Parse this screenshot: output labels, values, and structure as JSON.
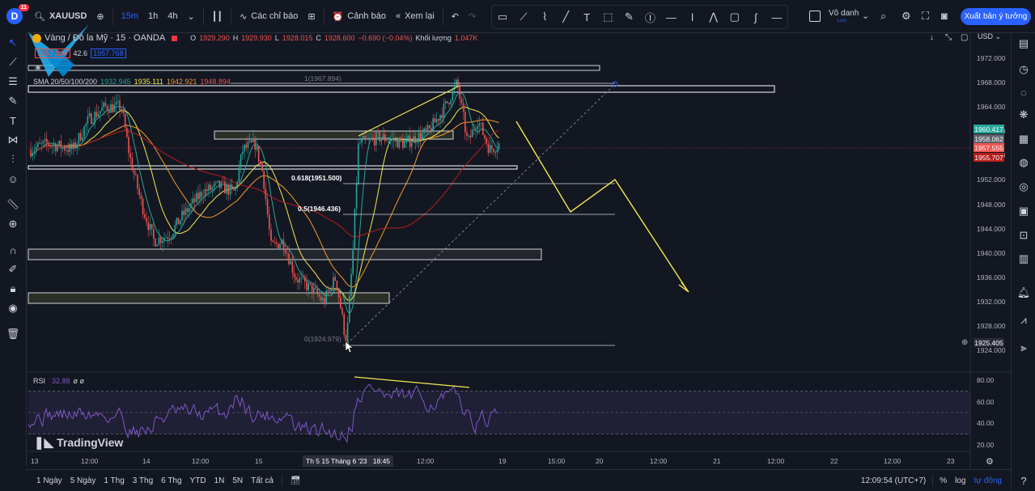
{
  "topbar": {
    "avatar_letter": "D",
    "avatar_badge": "11",
    "symbol": "XAUUSD",
    "timeframes": [
      "15m",
      "1h",
      "4h"
    ],
    "indicators_label": "Các chỉ báo",
    "alerts_label": "Cảnh báo",
    "replay_label": "Xem lại",
    "layout_name": "Vô danh",
    "layout_sub": "Lưu",
    "publish_label": "Xuất bản ý tưởng"
  },
  "legend": {
    "title": "Vàng / Đô la Mỹ · 15 · OANDA",
    "o_label": "O",
    "o_value": "1929.290",
    "h_label": "H",
    "h_value": "1929.930",
    "l_label": "L",
    "l_value": "1928.015",
    "c_label": "C",
    "c_value": "1928.600",
    "change": "−0.690 (−0.04%)",
    "volume_label": "Khối lượng",
    "volume_value": "1.047K",
    "bid": "1957.834",
    "spread": "42.6",
    "ask": "1957.768",
    "sma_label": "SMA 20/50/100/200",
    "sma_values": [
      "1932.945",
      "1935.111",
      "1942.921",
      "1948.894"
    ]
  },
  "chart": {
    "currency": "USD",
    "fib_labels": [
      "1(1967.894)",
      "0.618(1951.500)",
      "0.5(1946.436)",
      "0(1924.979)"
    ],
    "price_ticks": [
      "1972.000",
      "1968.000",
      "1964.000",
      "1960.000",
      "1956.000",
      "1952.000",
      "1948.000",
      "1944.000",
      "1940.000",
      "1936.000",
      "1932.000",
      "1928.000",
      "1924.000"
    ],
    "price_badges": [
      "1960.417",
      "1958.062",
      "1957.555",
      "1955.707",
      "1925.405"
    ],
    "time_ticks": [
      "13",
      "12:00",
      "14",
      "12:00",
      "15",
      "12:00",
      "19",
      "15:00",
      "20",
      "12:00",
      "21",
      "12:00",
      "22",
      "12:00",
      "23"
    ],
    "time_cursor": "Th 5 15 Tháng 6 '23",
    "time_cursor_time": "18:45",
    "rsi_label": "RSI",
    "rsi_value": "32.88",
    "rsi_extra": "ø ø",
    "rsi_ticks": [
      "80.00",
      "60.00",
      "40.00",
      "20.00"
    ],
    "watermark": "TradingView"
  },
  "bottombar": {
    "ranges": [
      "1 Ngày",
      "5 Ngày",
      "1 Thg",
      "3 Thg",
      "6 Thg",
      "YTD",
      "1N",
      "5N",
      "Tất cả"
    ],
    "clock": "12:09:54 (UTC+7)",
    "percent": "%",
    "log": "log",
    "auto": "tự động"
  },
  "colors": {
    "background": "#131722",
    "accent": "#2962ff",
    "up": "#26a69a",
    "down": "#ef5350",
    "drawing": "#f2e94e",
    "rsi": "#7e57c2"
  }
}
